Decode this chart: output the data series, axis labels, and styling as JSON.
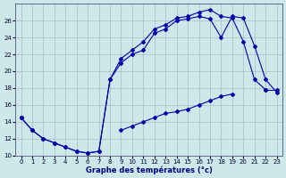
{
  "xlabel": "Graphe des températures (°c)",
  "background_color": "#cde8e8",
  "grid_color": "#b0b8c8",
  "line_color": "#0000aa",
  "series": {
    "s1_x": [
      0,
      1,
      2,
      3,
      4,
      5,
      6,
      7,
      8,
      9,
      10,
      11,
      12,
      13,
      14,
      15,
      16,
      17,
      18,
      19,
      20,
      21,
      22,
      23
    ],
    "s1_y": [
      14.5,
      13.0,
      12.0,
      11.5,
      11.0,
      10.5,
      10.3,
      10.5,
      19.0,
      21.5,
      22.5,
      23.5,
      25.0,
      25.5,
      26.3,
      26.5,
      27.0,
      27.3,
      26.5,
      26.3,
      23.5,
      19.0,
      17.8,
      null
    ],
    "s2_x": [
      0,
      1,
      2,
      3,
      4,
      5,
      6,
      7,
      8,
      9,
      10,
      11,
      12,
      13,
      14,
      15,
      16,
      17,
      18,
      19,
      20,
      21,
      22,
      23
    ],
    "s2_y": [
      14.5,
      13.0,
      12.0,
      11.5,
      11.0,
      10.5,
      10.3,
      10.5,
      19.0,
      21.0,
      22.0,
      22.5,
      24.5,
      25.0,
      26.0,
      26.2,
      26.5,
      26.2,
      24.0,
      26.5,
      26.3,
      23.0,
      19.0,
      17.5
    ],
    "s3_x": [
      0,
      1,
      2,
      3,
      4,
      5,
      6,
      7,
      8,
      9,
      10,
      11,
      12,
      13,
      14,
      15,
      16,
      17,
      18,
      19,
      20,
      21,
      22,
      23
    ],
    "s3_y": [
      14.5,
      null,
      null,
      null,
      null,
      null,
      null,
      null,
      null,
      13.0,
      13.5,
      14.0,
      14.5,
      15.0,
      15.2,
      15.5,
      16.0,
      16.5,
      17.0,
      17.3,
      null,
      null,
      17.8,
      17.8
    ]
  },
  "ylim": [
    10,
    28
  ],
  "xlim": [
    -0.5,
    23.5
  ],
  "yticks": [
    10,
    12,
    14,
    16,
    18,
    20,
    22,
    24,
    26
  ],
  "xticks": [
    0,
    1,
    2,
    3,
    4,
    5,
    6,
    7,
    8,
    9,
    10,
    11,
    12,
    13,
    14,
    15,
    16,
    17,
    18,
    19,
    20,
    21,
    22,
    23
  ]
}
